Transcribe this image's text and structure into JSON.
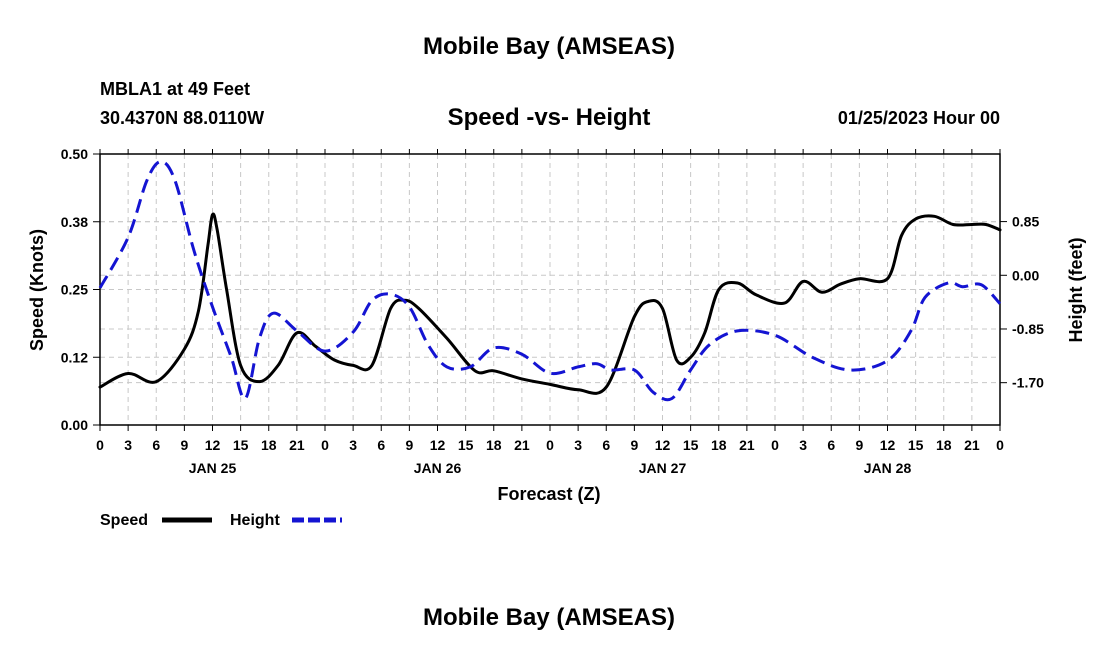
{
  "chart_data": {
    "type": "line",
    "title": "Mobile Bay (AMSEAS)",
    "footer_title": "Mobile Bay (AMSEAS)",
    "station": "MBLA1 at 49 Feet",
    "location": "30.4370N  88.0110W",
    "subtitle": "Speed -vs- Height",
    "datetime": "01/25/2023 Hour 00",
    "xlabel": "Forecast (Z)",
    "ylabel": "Speed (Knots)",
    "y2label": "Height (feet)",
    "xlim": [
      0,
      96
    ],
    "ylim": [
      0.0,
      0.5
    ],
    "y2lim": [
      -2.37,
      1.92
    ],
    "x_tick_labels": [
      "0",
      "3",
      "6",
      "9",
      "12",
      "15",
      "18",
      "21",
      "0",
      "3",
      "6",
      "9",
      "12",
      "15",
      "18",
      "21",
      "0",
      "3",
      "6",
      "9",
      "12",
      "15",
      "18",
      "21",
      "0",
      "3",
      "6",
      "9",
      "12",
      "15",
      "18",
      "21",
      "0"
    ],
    "date_labels": [
      {
        "label": "JAN 25",
        "hour": 12
      },
      {
        "label": "JAN 26",
        "hour": 36
      },
      {
        "label": "JAN 27",
        "hour": 60
      },
      {
        "label": "JAN 28",
        "hour": 84
      }
    ],
    "y_ticks": [
      "0.00",
      "0.12",
      "0.25",
      "0.38",
      "0.50"
    ],
    "y_tick_values": [
      0.0,
      0.125,
      0.25,
      0.375,
      0.5
    ],
    "y2_ticks": [
      "-1.70",
      "-0.85",
      "0.00",
      "0.85"
    ],
    "y2_tick_values": [
      -1.7,
      -0.85,
      0.0,
      0.85
    ],
    "grid": true,
    "legend": [
      {
        "name": "Speed",
        "color": "#000000",
        "dash": "solid"
      },
      {
        "name": "Height",
        "color": "#1414d2",
        "dash": "dashed"
      }
    ],
    "series": [
      {
        "name": "Speed",
        "axis": "left",
        "color": "#000000",
        "x": [
          0,
          3,
          6,
          9,
          10.5,
          11.5,
          12,
          12.5,
          13.5,
          15,
          17,
          19,
          21,
          23,
          25,
          27,
          29,
          31,
          32.5,
          34,
          37,
          40,
          42,
          45,
          48,
          51,
          54,
          57,
          58.5,
          60,
          61.5,
          63,
          64.5,
          66,
          68,
          70,
          73,
          75,
          77,
          79,
          81,
          84,
          85.5,
          87,
          89,
          91,
          93,
          94.5,
          96
        ],
        "values": [
          0.07,
          0.095,
          0.08,
          0.14,
          0.21,
          0.33,
          0.388,
          0.36,
          0.25,
          0.11,
          0.08,
          0.11,
          0.17,
          0.145,
          0.12,
          0.11,
          0.11,
          0.215,
          0.23,
          0.215,
          0.16,
          0.1,
          0.1,
          0.085,
          0.075,
          0.065,
          0.07,
          0.2,
          0.228,
          0.215,
          0.12,
          0.125,
          0.17,
          0.25,
          0.262,
          0.24,
          0.225,
          0.265,
          0.245,
          0.26,
          0.27,
          0.27,
          0.35,
          0.38,
          0.385,
          0.37,
          0.37,
          0.37,
          0.36
        ]
      },
      {
        "name": "Height",
        "axis": "right",
        "color": "#1414d2",
        "x": [
          0,
          3,
          5,
          6.5,
          8,
          10,
          12,
          14,
          15.5,
          17,
          18.5,
          21,
          24,
          27,
          29,
          31,
          33,
          35,
          37,
          39.5,
          42,
          45,
          48,
          51,
          53,
          54.5,
          57,
          59,
          61,
          63,
          65,
          68,
          72,
          76,
          80,
          84,
          86.5,
          88,
          90.5,
          92,
          94,
          96
        ],
        "values": [
          -0.2,
          0.6,
          1.5,
          1.8,
          1.5,
          0.4,
          -0.5,
          -1.3,
          -1.95,
          -1.0,
          -0.6,
          -0.88,
          -1.2,
          -0.9,
          -0.4,
          -0.3,
          -0.5,
          -1.1,
          -1.45,
          -1.45,
          -1.15,
          -1.25,
          -1.55,
          -1.45,
          -1.4,
          -1.5,
          -1.5,
          -1.85,
          -1.95,
          -1.5,
          -1.1,
          -0.88,
          -0.95,
          -1.3,
          -1.5,
          -1.35,
          -0.88,
          -0.35,
          -0.12,
          -0.18,
          -0.15,
          -0.45
        ]
      }
    ]
  }
}
